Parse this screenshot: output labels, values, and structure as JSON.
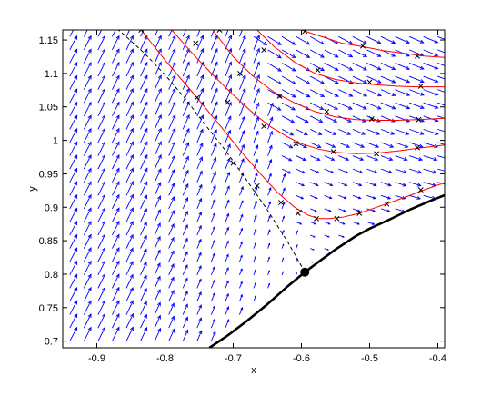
{
  "chart_data": {
    "type": "quiver",
    "title": "",
    "xlabel": "x",
    "ylabel": "y",
    "xlim": [
      -0.95,
      -0.39
    ],
    "ylim": [
      0.69,
      1.165
    ],
    "xticks": [
      -0.9,
      -0.8,
      -0.7,
      -0.6,
      -0.5,
      -0.4
    ],
    "xtick_labels": [
      "-0.9",
      "-0.8",
      "-0.7",
      "-0.6",
      "-0.5",
      "-0.4"
    ],
    "yticks": [
      0.7,
      0.75,
      0.8,
      0.85,
      0.9,
      0.95,
      1.0,
      1.05,
      1.1,
      1.15
    ],
    "ytick_labels": [
      "0.7",
      "0.75",
      "0.8",
      "0.85",
      "0.9",
      "0.95",
      "1",
      "1.05",
      "1.1",
      "1.15"
    ],
    "grid": false,
    "colors": {
      "arrows": "#0000ff",
      "trajectories": "#ff0000",
      "markers": "#000000",
      "boundary": "#000000",
      "separatrix": "#000000"
    },
    "equilibrium_point": {
      "x": -0.595,
      "y": 0.803
    },
    "boundary_curve": {
      "x": [
        -0.735,
        -0.71,
        -0.68,
        -0.65,
        -0.62,
        -0.595,
        -0.57,
        -0.55,
        -0.52,
        -0.5,
        -0.47,
        -0.44,
        -0.41,
        -0.39
      ],
      "y": [
        0.69,
        0.707,
        0.73,
        0.755,
        0.782,
        0.803,
        0.822,
        0.837,
        0.857,
        0.868,
        0.882,
        0.897,
        0.91,
        0.918
      ]
    },
    "separatrix_curve": {
      "x": [
        -0.595,
        -0.62,
        -0.65,
        -0.68,
        -0.71,
        -0.74,
        -0.77,
        -0.8,
        -0.83,
        -0.86,
        -0.88
      ],
      "y": [
        0.803,
        0.848,
        0.896,
        0.94,
        0.983,
        1.022,
        1.062,
        1.098,
        1.13,
        1.158,
        1.175
      ]
    },
    "series": [
      {
        "x": [
          -0.835,
          -0.8,
          -0.76,
          -0.72,
          -0.69,
          -0.66,
          -0.635,
          -0.61,
          -0.59,
          -0.575,
          -0.56,
          -0.54,
          -0.515,
          -0.49,
          -0.47,
          -0.44,
          -0.42,
          -0.395
        ],
        "y": [
          1.165,
          1.12,
          1.072,
          1.023,
          0.985,
          0.95,
          0.922,
          0.9,
          0.888,
          0.883,
          0.883,
          0.885,
          0.891,
          0.9,
          0.907,
          0.918,
          0.926,
          0.935
        ],
        "markers_x": [
          -0.835,
          -0.753,
          -0.7,
          -0.665,
          -0.63,
          -0.605,
          -0.578,
          -0.548,
          -0.515,
          -0.475,
          -0.425
        ],
        "markers_y": [
          1.165,
          1.064,
          0.966,
          0.932,
          0.907,
          0.891,
          0.883,
          0.883,
          0.891,
          0.905,
          0.926
        ]
      },
      {
        "x": [
          -0.79,
          -0.76,
          -0.73,
          -0.7,
          -0.67,
          -0.645,
          -0.62,
          -0.6,
          -0.575,
          -0.55,
          -0.52,
          -0.49,
          -0.46,
          -0.43,
          -0.39
        ],
        "y": [
          1.165,
          1.13,
          1.098,
          1.068,
          1.04,
          1.02,
          1.005,
          0.995,
          0.987,
          0.982,
          0.98,
          0.981,
          0.984,
          0.988,
          0.993
        ],
        "markers_x": [
          -0.755,
          -0.708,
          -0.655,
          -0.608,
          -0.553,
          -0.49,
          -0.43
        ],
        "markers_y": [
          1.145,
          1.057,
          1.021,
          0.995,
          0.983,
          0.98,
          0.989
        ]
      },
      {
        "x": [
          -0.73,
          -0.7,
          -0.67,
          -0.64,
          -0.61,
          -0.58,
          -0.55,
          -0.52,
          -0.49,
          -0.46,
          -0.43,
          -0.39
        ],
        "y": [
          1.165,
          1.125,
          1.095,
          1.072,
          1.056,
          1.043,
          1.035,
          1.031,
          1.03,
          1.03,
          1.031,
          1.033
        ],
        "markers_x": [
          -0.72,
          -0.69,
          -0.632,
          -0.563,
          -0.497,
          -0.428
        ],
        "markers_y": [
          1.165,
          1.1,
          1.066,
          1.043,
          1.032,
          1.031
        ]
      },
      {
        "x": [
          -0.665,
          -0.64,
          -0.61,
          -0.58,
          -0.55,
          -0.52,
          -0.49,
          -0.46,
          -0.43,
          -0.39
        ],
        "y": [
          1.165,
          1.14,
          1.117,
          1.1,
          1.091,
          1.086,
          1.083,
          1.081,
          1.08,
          1.08
        ],
        "markers_x": [
          -0.655,
          -0.576,
          -0.5,
          -0.425
        ],
        "markers_y": [
          1.135,
          1.105,
          1.087,
          1.081
        ]
      },
      {
        "x": [
          -0.6,
          -0.57,
          -0.54,
          -0.51,
          -0.48,
          -0.45,
          -0.42,
          -0.39
        ],
        "y": [
          1.165,
          1.155,
          1.145,
          1.14,
          1.134,
          1.13,
          1.126,
          1.124
        ],
        "markers_x": [
          -0.595,
          -0.51,
          -0.43
        ],
        "markers_y": [
          1.163,
          1.141,
          1.126
        ]
      }
    ]
  }
}
